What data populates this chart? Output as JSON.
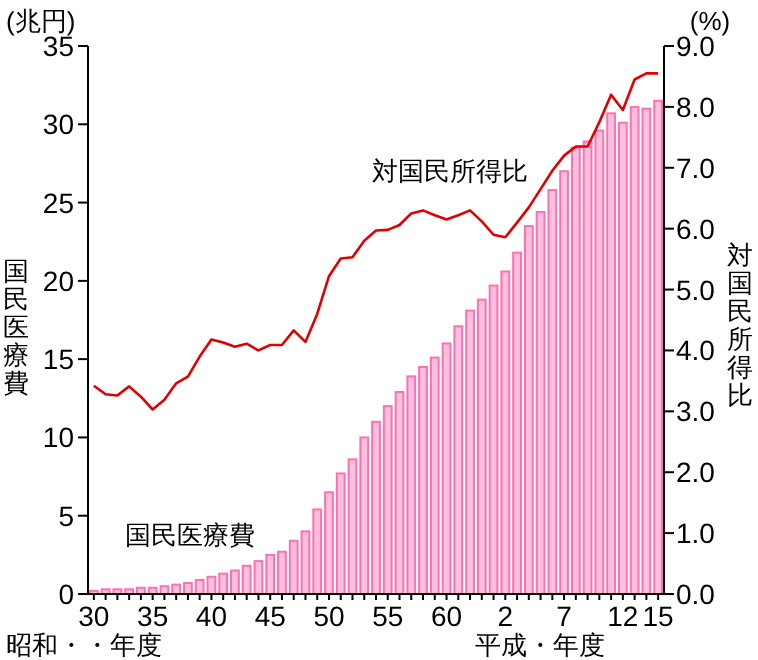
{
  "chart_data": {
    "type": "bar",
    "categories": [
      "30",
      null,
      null,
      null,
      null,
      "35",
      null,
      null,
      null,
      null,
      "40",
      null,
      null,
      null,
      null,
      "45",
      null,
      null,
      null,
      null,
      "50",
      null,
      null,
      null,
      null,
      "55",
      null,
      null,
      null,
      null,
      "60",
      null,
      null,
      null,
      null,
      "2",
      null,
      null,
      null,
      null,
      "7",
      null,
      null,
      null,
      null,
      "12",
      null,
      null,
      "15"
    ],
    "series": [
      {
        "name": "国民医療費",
        "color": "#ffc0e0",
        "values": [
          0.2,
          0.3,
          0.3,
          0.3,
          0.4,
          0.4,
          0.5,
          0.6,
          0.7,
          0.9,
          1.1,
          1.3,
          1.5,
          1.8,
          2.1,
          2.5,
          2.7,
          3.4,
          4.0,
          5.4,
          6.5,
          7.7,
          8.6,
          10.0,
          11.0,
          12.0,
          12.9,
          13.9,
          14.5,
          15.1,
          16.0,
          17.1,
          18.1,
          18.8,
          19.7,
          20.6,
          21.8,
          23.5,
          24.4,
          25.8,
          27.0,
          28.5,
          28.9,
          29.6,
          30.7,
          30.1,
          31.1,
          31.0,
          31.5
        ]
      },
      {
        "name": "対国民所得比",
        "type": "line",
        "axis": "y2",
        "color": "#e00000",
        "values": [
          3.42,
          3.28,
          3.26,
          3.41,
          3.24,
          3.03,
          3.19,
          3.46,
          3.57,
          3.9,
          4.18,
          4.13,
          4.06,
          4.11,
          4.0,
          4.09,
          4.09,
          4.33,
          4.14,
          4.6,
          5.22,
          5.51,
          5.53,
          5.8,
          5.97,
          5.98,
          6.06,
          6.25,
          6.3,
          6.22,
          6.15,
          6.22,
          6.3,
          6.12,
          5.9,
          5.86,
          6.1,
          6.35,
          6.65,
          6.95,
          7.2,
          7.35,
          7.35,
          7.75,
          8.2,
          7.95,
          8.45,
          8.55,
          8.55
        ]
      }
    ],
    "ylabel": "国民医療費",
    "y2label": "対国民所得比",
    "ylim": [
      0,
      35
    ],
    "yticks": [
      0,
      5,
      10,
      15,
      20,
      25,
      30,
      35
    ],
    "y2lim": [
      0,
      9
    ],
    "y2ticks": [
      {
        "value": 0,
        "label": "0.0"
      },
      {
        "value": 1,
        "label": "1.0"
      },
      {
        "value": 2,
        "label": "2.0"
      },
      {
        "value": 3,
        "label": "3.0"
      },
      {
        "value": 4,
        "label": "4.0"
      },
      {
        "value": 5,
        "label": "5.0"
      },
      {
        "value": 6,
        "label": "6.0"
      },
      {
        "value": 7,
        "label": "7.0"
      },
      {
        "value": 8,
        "label": "8.0"
      },
      {
        "value": 9,
        "label": "9.0"
      }
    ],
    "annotations": [
      "(兆円)",
      "(%)",
      "昭和・・年度",
      "平成・年度"
    ],
    "legend": false,
    "grid": false
  }
}
